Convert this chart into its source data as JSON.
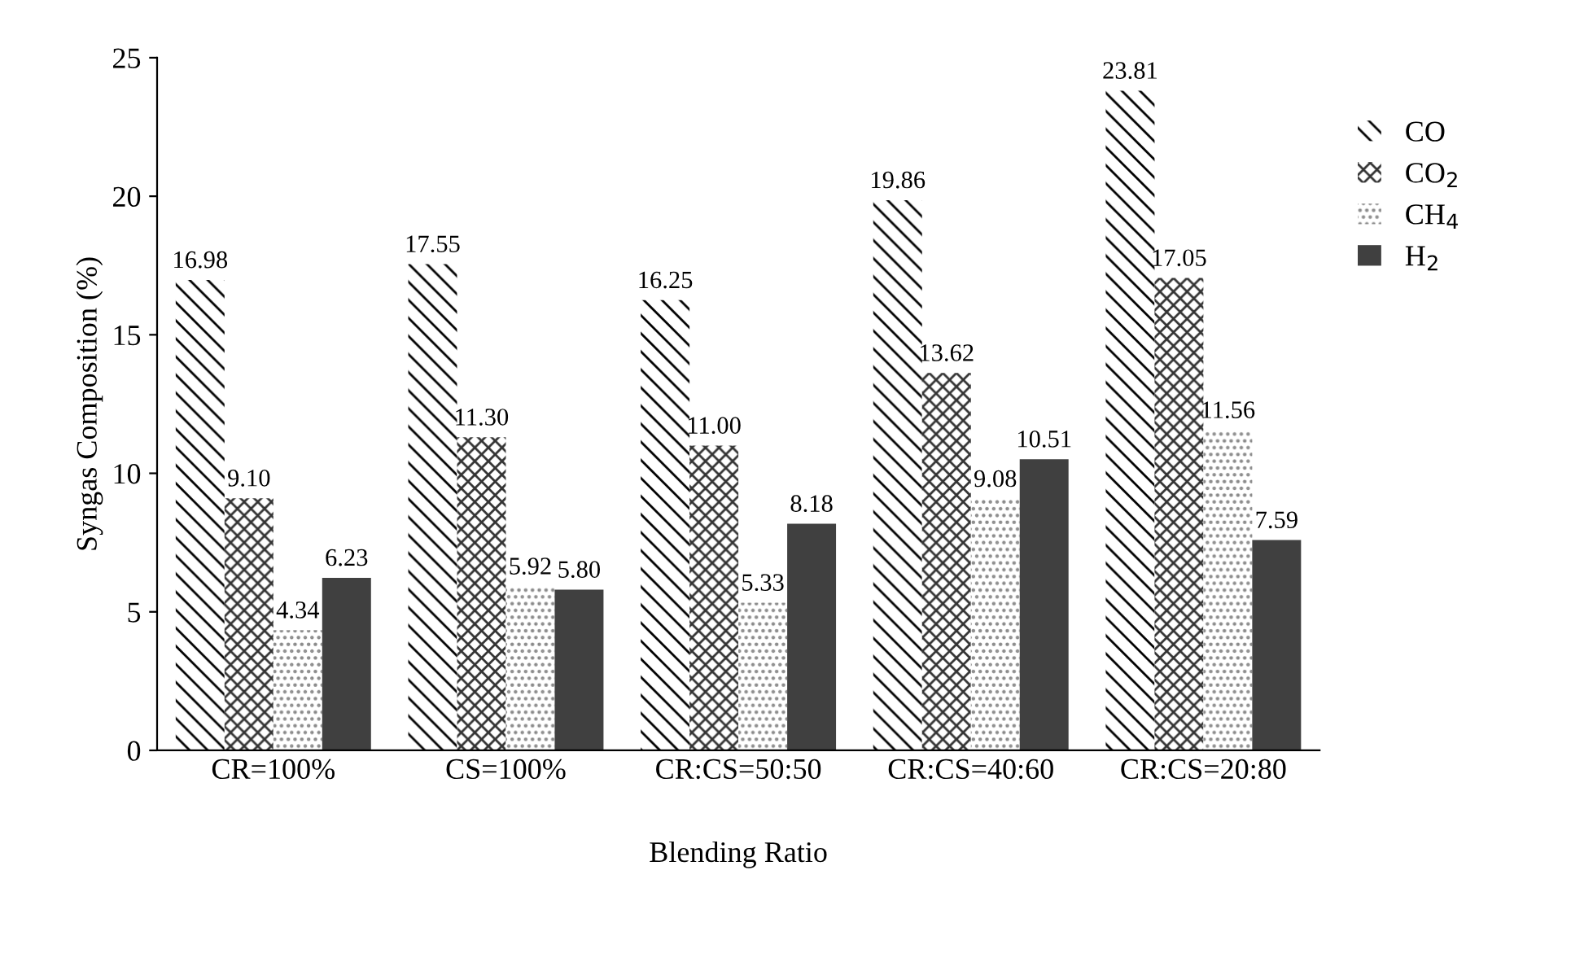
{
  "chart_data": {
    "type": "bar",
    "xlabel": "Blending Ratio",
    "ylabel": "Syngas Composition (%)",
    "categories": [
      "CR=100%",
      "CS=100%",
      "CR:CS=50:50",
      "CR:CS=40:60",
      "CR:CS=20:80"
    ],
    "series": [
      {
        "name": "CO",
        "color": "#000000",
        "values": [
          16.98,
          17.55,
          16.25,
          19.86,
          23.81
        ],
        "value_labels": [
          "16.98",
          "17.55",
          "16.25",
          "19.86",
          "23.81"
        ]
      },
      {
        "name": "CO$_{2}$",
        "color": "#333333",
        "values": [
          9.1,
          11.3,
          11.0,
          13.62,
          17.05
        ],
        "value_labels": [
          "9.10",
          "11.30",
          "11.00",
          "13.62",
          "17.05"
        ]
      },
      {
        "name": "CH$_{4}$",
        "color": "#888888",
        "values": [
          4.34,
          5.92,
          5.33,
          9.08,
          11.56
        ],
        "value_labels": [
          "4.34",
          "5.92",
          "5.33",
          "9.08",
          "11.56"
        ]
      },
      {
        "name": "H$_{2}$",
        "color": "#404040",
        "values": [
          6.23,
          5.8,
          8.18,
          10.51,
          7.59
        ],
        "value_labels": [
          "6.23",
          "5.80",
          "8.18",
          "10.51",
          "7.59"
        ]
      }
    ],
    "ylim": [
      0,
      25
    ],
    "yticks": [
      0,
      5,
      10,
      15,
      20,
      25
    ],
    "grid": false,
    "legend": "right"
  }
}
